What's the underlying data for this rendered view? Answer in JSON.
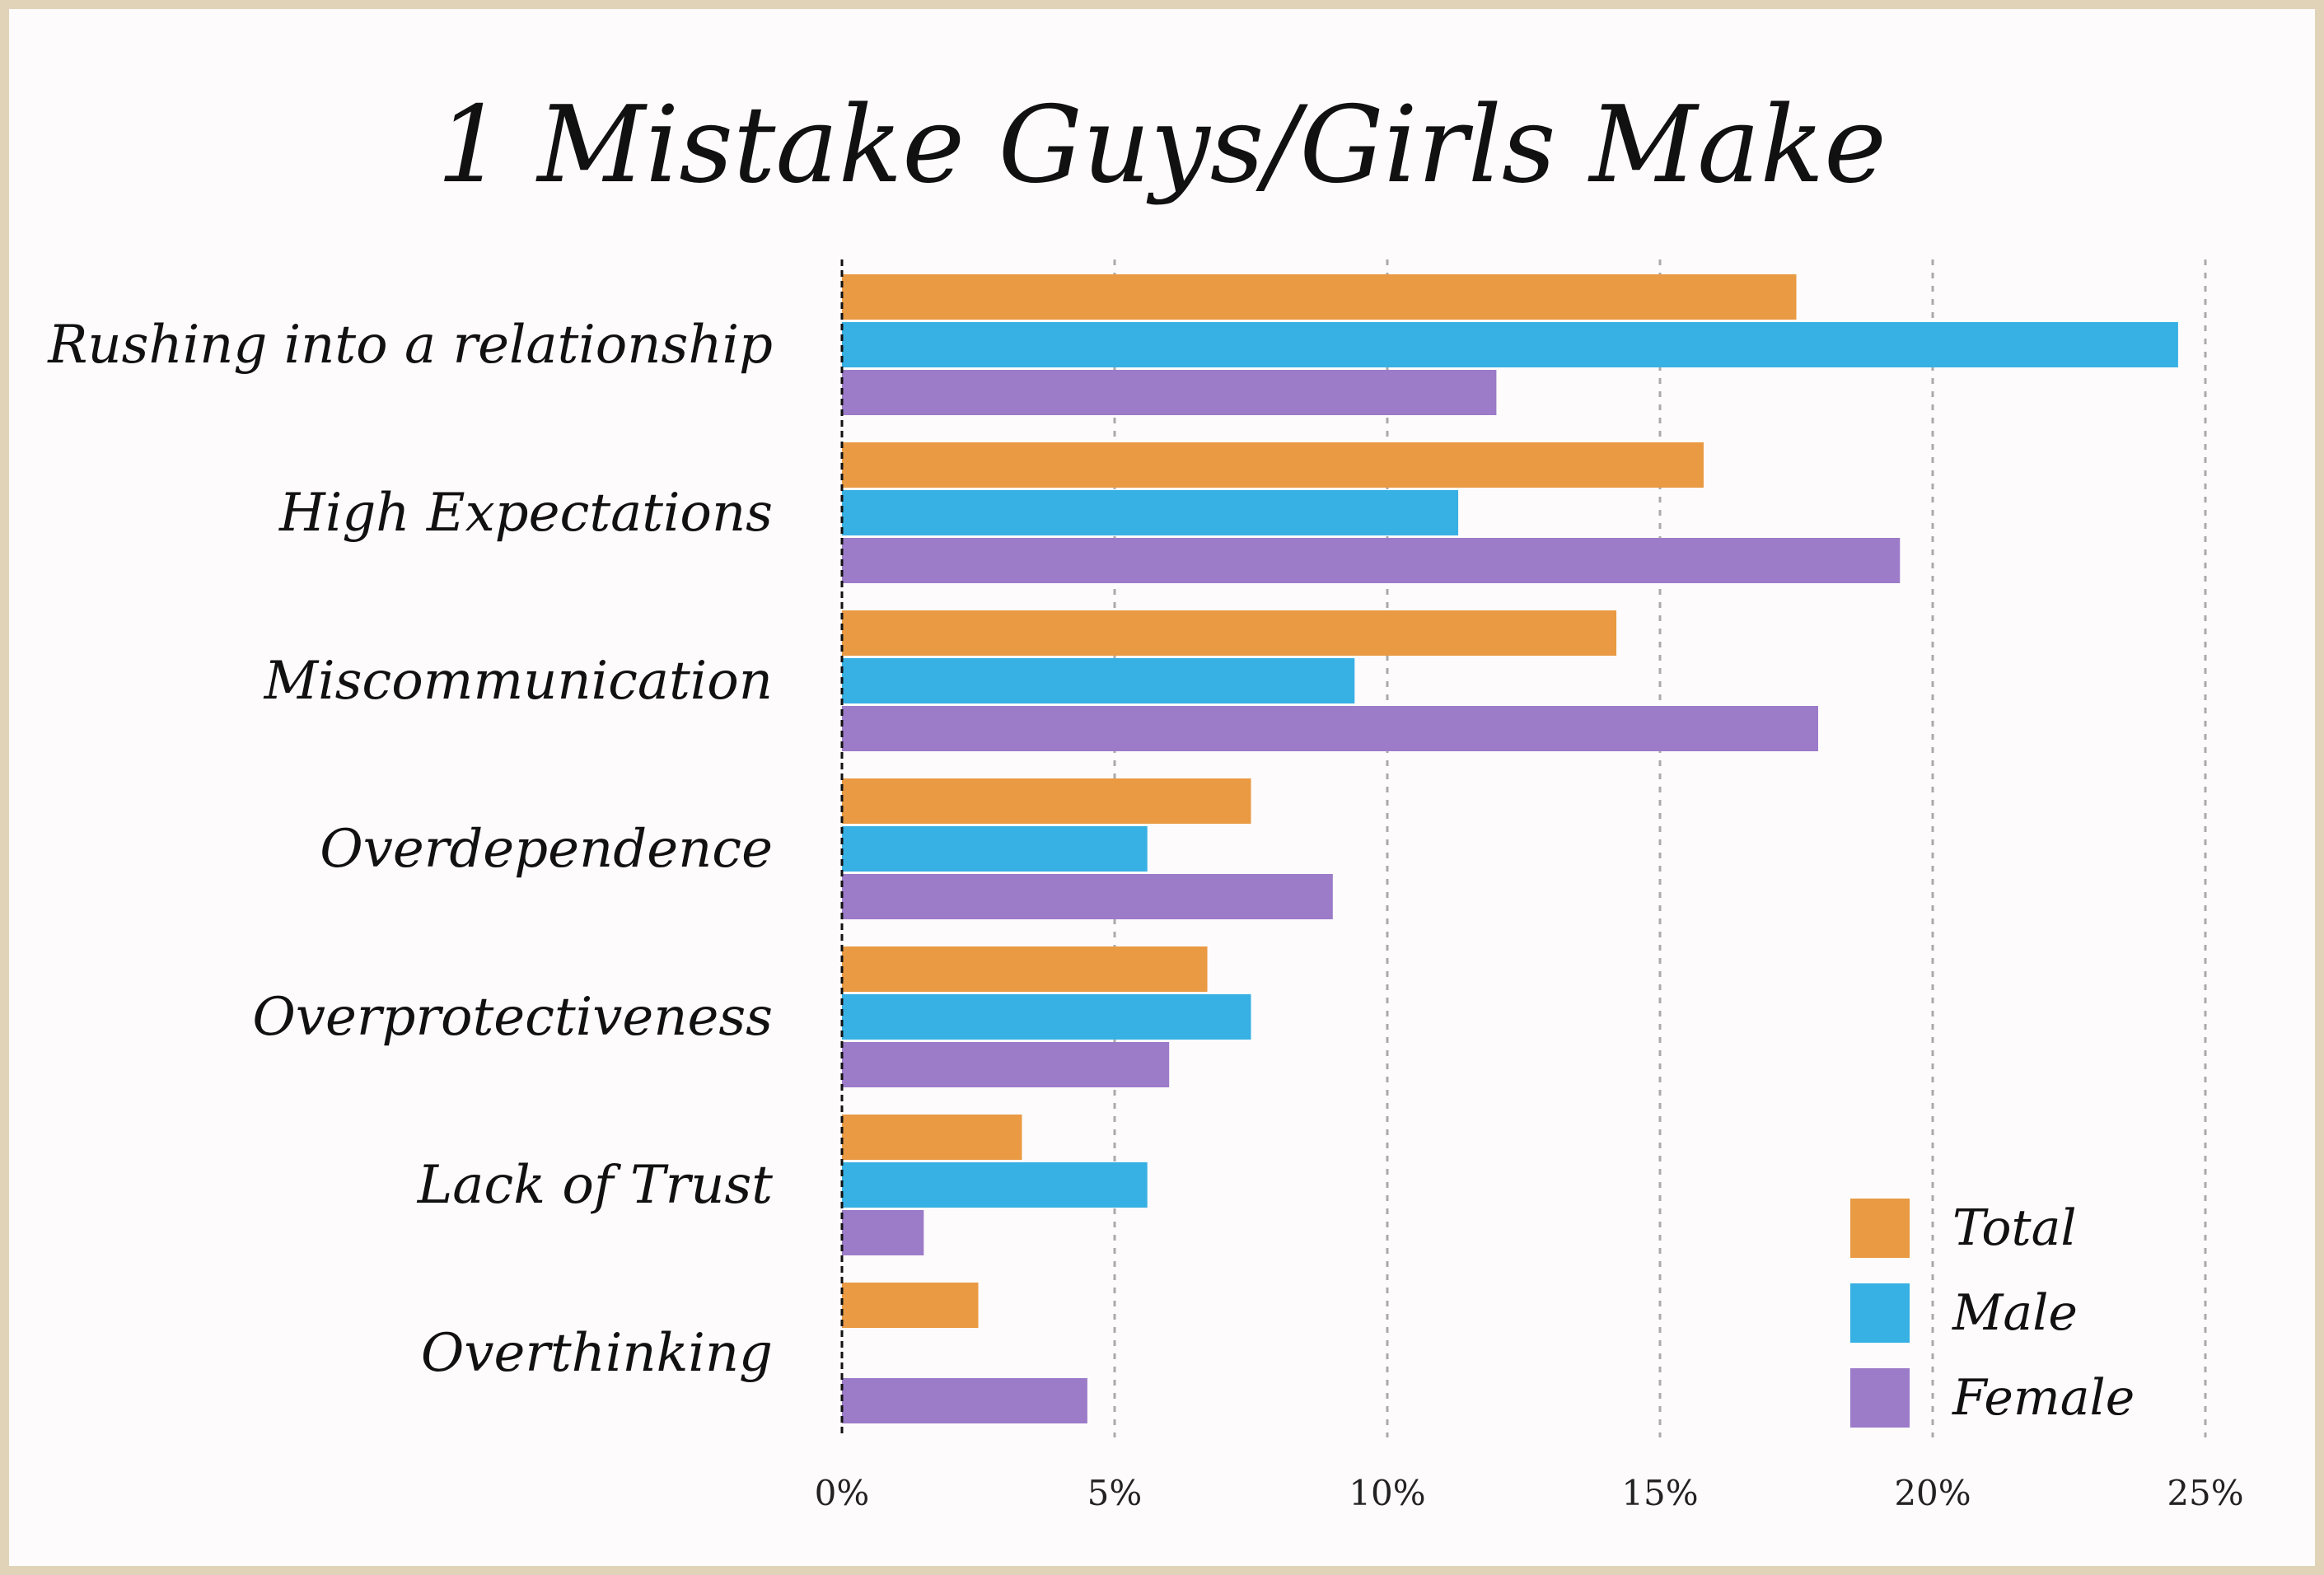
{
  "chart_data": {
    "type": "bar",
    "orientation": "horizontal",
    "title": "1 Mistake Guys/Girls Make",
    "categories": [
      "Rushing into a relationship",
      "High Expectations",
      "Miscommunication",
      "Overdependence",
      "Overprotectiveness",
      "Lack of Trust",
      "Overthinking"
    ],
    "series": [
      {
        "name": "Total",
        "color": "#e99a43",
        "values": [
          17.5,
          15.8,
          14.2,
          7.5,
          6.7,
          3.3,
          2.5
        ]
      },
      {
        "name": "Male",
        "color": "#37b0e3",
        "values": [
          24.5,
          11.3,
          9.4,
          5.6,
          7.5,
          5.6,
          0
        ]
      },
      {
        "name": "Female",
        "color": "#9c7bc9",
        "values": [
          12.0,
          19.4,
          17.9,
          9.0,
          6.0,
          1.5,
          4.5
        ]
      }
    ],
    "xlim": [
      0,
      25
    ],
    "x_ticks": [
      0,
      5,
      10,
      15,
      20,
      25
    ],
    "x_tick_labels": [
      "0%",
      "5%",
      "10%",
      "15%",
      "20%",
      "25%"
    ],
    "grid": "vertical dashed",
    "legend_position": "bottom-right"
  }
}
